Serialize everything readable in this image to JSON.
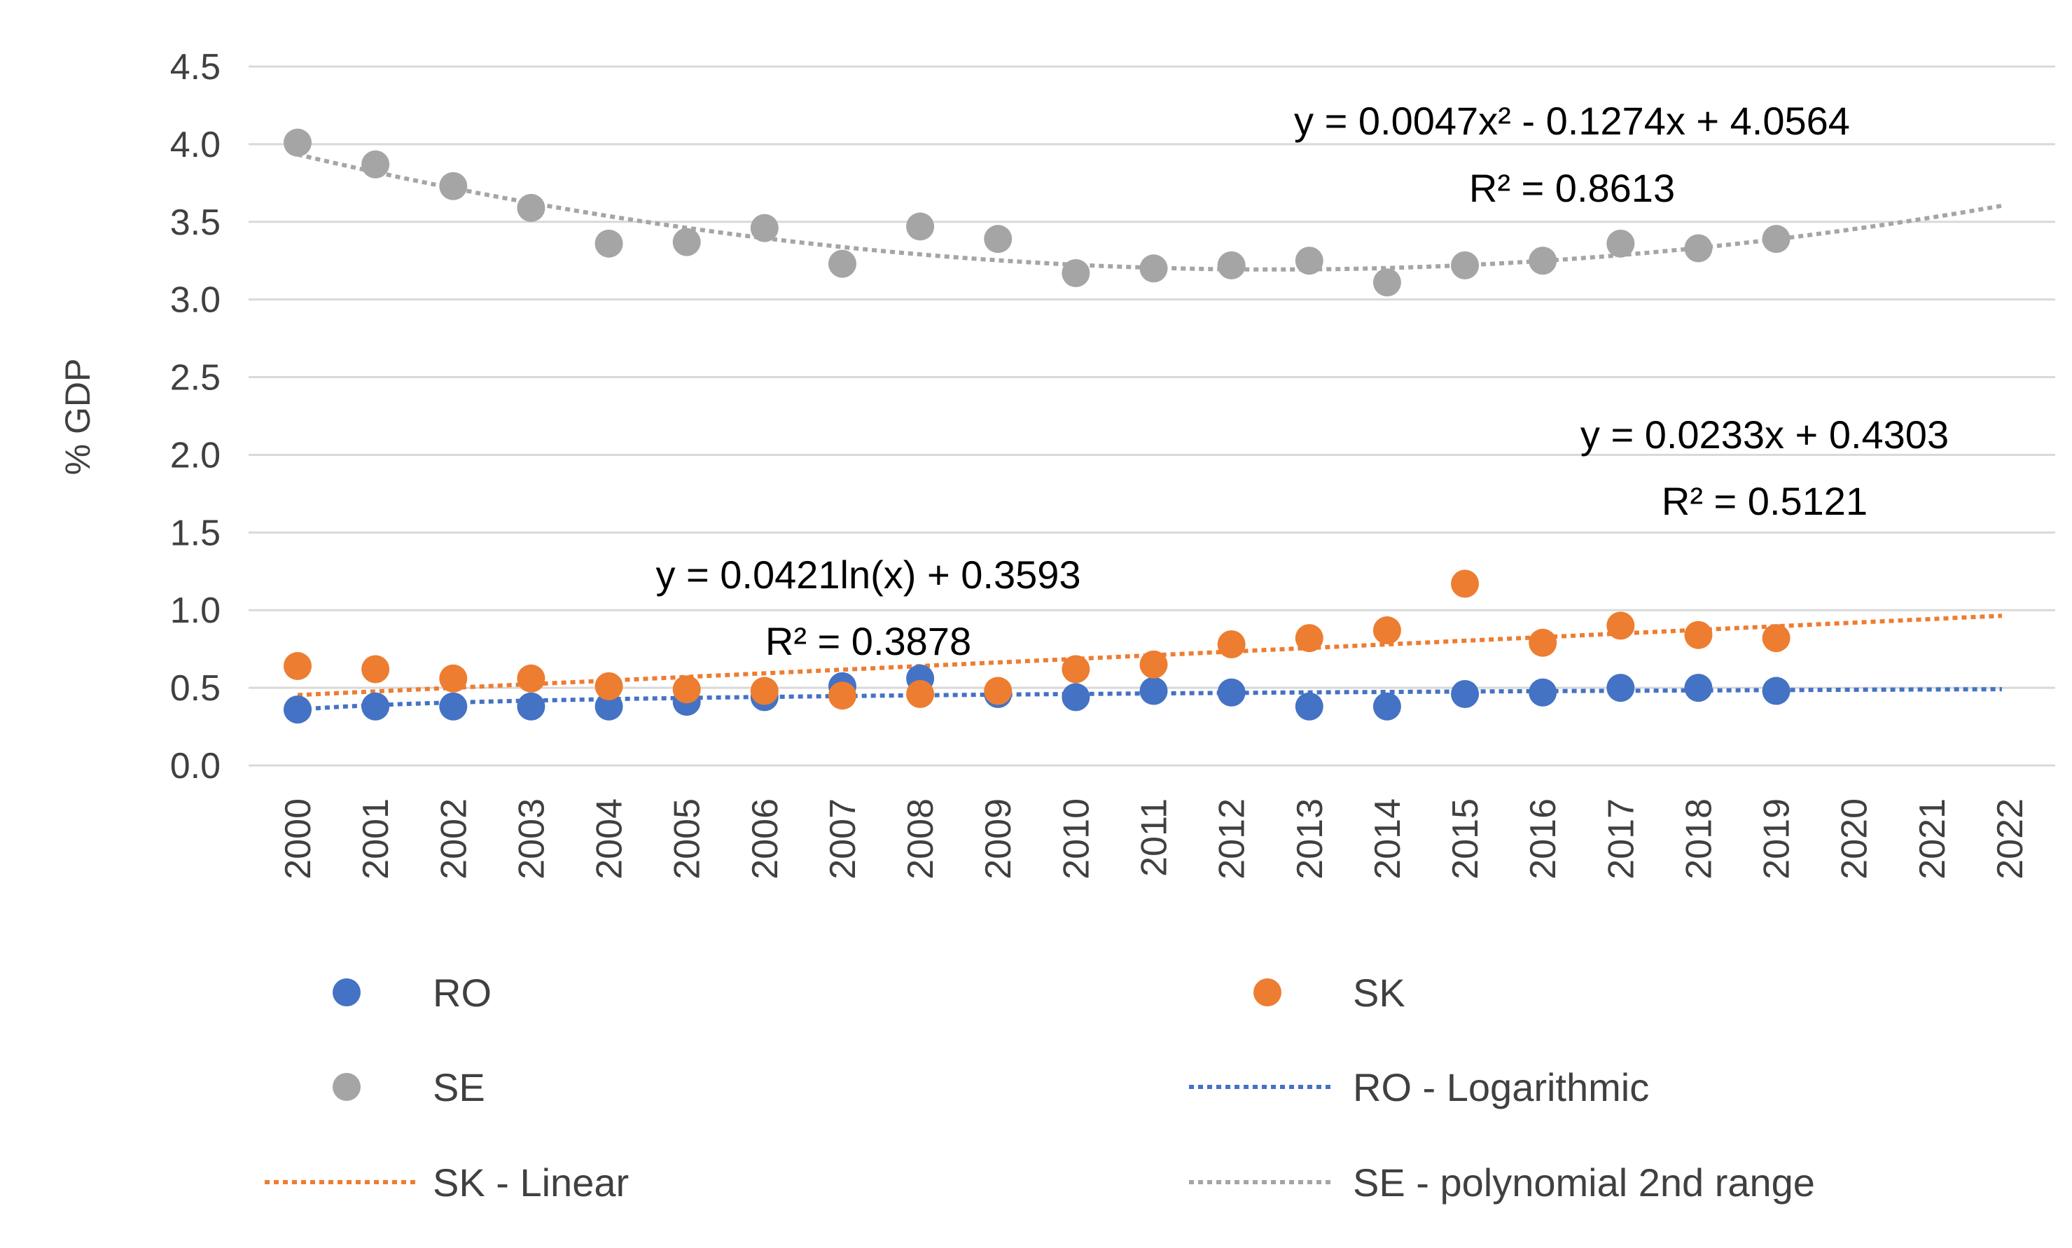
{
  "chart_data": {
    "type": "scatter",
    "title": "",
    "xlabel": "",
    "ylabel": "% GDP",
    "ylim": [
      0,
      4.5
    ],
    "yticks": [
      0,
      0.5,
      1,
      1.5,
      2,
      2.5,
      3,
      3.5,
      4,
      4.5
    ],
    "ytick_labels": [
      "0.0",
      "0.5",
      "1.0",
      "1.5",
      "2.0",
      "2.5",
      "3.0",
      "3.5",
      "4.0",
      "4.5"
    ],
    "categories": [
      "2000",
      "2001",
      "2002",
      "2003",
      "2004",
      "2005",
      "2006",
      "2007",
      "2008",
      "2009",
      "2010",
      "2011",
      "2012",
      "2013",
      "2014",
      "2015",
      "2016",
      "2017",
      "2018",
      "2019",
      "2020",
      "2021",
      "2022"
    ],
    "grid": true,
    "legend_position": "bottom",
    "series": [
      {
        "name": "RO",
        "color": "#4472C4",
        "values": [
          0.36,
          0.38,
          0.38,
          0.38,
          0.38,
          0.41,
          0.44,
          0.51,
          0.56,
          0.46,
          0.44,
          0.48,
          0.47,
          0.38,
          0.38,
          0.46,
          0.47,
          0.5,
          0.5,
          0.48
        ]
      },
      {
        "name": "SK",
        "color": "#ED7D31",
        "values": [
          0.64,
          0.62,
          0.56,
          0.56,
          0.51,
          0.49,
          0.48,
          0.45,
          0.46,
          0.48,
          0.62,
          0.65,
          0.78,
          0.82,
          0.87,
          1.17,
          0.79,
          0.9,
          0.84,
          0.82
        ]
      },
      {
        "name": "SE",
        "color": "#A5A5A5",
        "values": [
          4.01,
          3.87,
          3.73,
          3.59,
          3.36,
          3.37,
          3.46,
          3.23,
          3.47,
          3.39,
          3.17,
          3.2,
          3.22,
          3.25,
          3.11,
          3.22,
          3.25,
          3.36,
          3.33,
          3.39
        ]
      }
    ],
    "trendlines": [
      {
        "name": "RO - Logarithmic",
        "series": "RO",
        "type": "logarithmic",
        "color": "#4472C4",
        "a": 0.0421,
        "b": 0.3593,
        "equation": "y = 0.0421ln(x) + 0.3593",
        "r2": "R² = 0.3878"
      },
      {
        "name": "SK - Linear",
        "series": "SK",
        "type": "linear",
        "color": "#ED7D31",
        "a": 0.0233,
        "b": 0.4303,
        "equation": "y = 0.0233x + 0.4303",
        "r2": "R² = 0.5121"
      },
      {
        "name": "SE - polynomial 2nd range",
        "series": "SE",
        "type": "polynomial",
        "color": "#A5A5A5",
        "a": 0.0047,
        "b": -0.1274,
        "c": 4.0564,
        "equation": "y = 0.0047x² - 0.1274x + 4.0564",
        "r2": "R² = 0.8613"
      }
    ],
    "legend": [
      {
        "label": "RO",
        "kind": "marker",
        "color": "#4472C4"
      },
      {
        "label": "SK",
        "kind": "marker",
        "color": "#ED7D31"
      },
      {
        "label": "SE",
        "kind": "marker",
        "color": "#A5A5A5"
      },
      {
        "label": "RO - Logarithmic",
        "kind": "line",
        "color": "#4472C4"
      },
      {
        "label": "SK - Linear",
        "kind": "line",
        "color": "#ED7D31"
      },
      {
        "label": "SE - polynomial 2nd range",
        "kind": "line",
        "color": "#A5A5A5"
      }
    ],
    "gridline_color": "#D9D9D9"
  }
}
